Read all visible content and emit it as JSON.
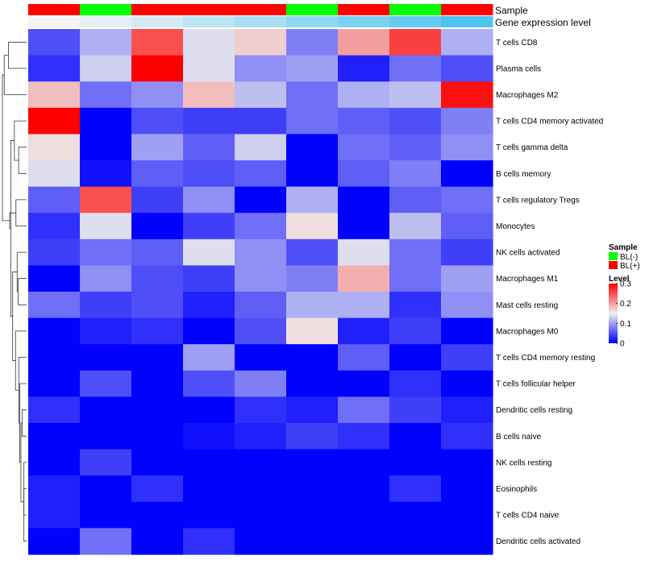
{
  "chart_data": {
    "type": "heatmap",
    "annotations": [
      {
        "name": "Sample",
        "values": [
          "BL(+)",
          "BL(-)",
          "BL(+)",
          "BL(+)",
          "BL(+)",
          "BL(-)",
          "BL(+)",
          "BL(-)",
          "BL(+)"
        ]
      },
      {
        "name": "Gene expression level",
        "values": [
          0.02,
          0.05,
          0.08,
          0.12,
          0.16,
          0.2,
          0.24,
          0.28,
          0.32
        ]
      }
    ],
    "rows": [
      "T cells CD8",
      "Plasma cells",
      "Macrophages M2",
      "T cells CD4 memory activated",
      "T cells gamma delta",
      "B cells memory",
      "T cells regulatory  Tregs",
      "Monocytes",
      "NK cells activated",
      "Macrophages M1",
      "Mast cells resting",
      "Macrophages M0",
      "T cells CD4 memory resting",
      "T cells follicular helper",
      "Dendritic cells resting",
      "B cells naive",
      "NK cells resting",
      "Eosinophils",
      "T cells CD4 naive",
      "Dendritic cells activated"
    ],
    "values": [
      [
        0.05,
        0.11,
        0.25,
        0.14,
        0.17,
        0.08,
        0.2,
        0.26,
        0.11
      ],
      [
        0.03,
        0.13,
        0.3,
        0.14,
        0.09,
        0.1,
        0.02,
        0.07,
        0.05
      ],
      [
        0.18,
        0.07,
        0.09,
        0.18,
        0.12,
        0.07,
        0.11,
        0.12,
        0.29
      ],
      [
        0.3,
        0.0,
        0.05,
        0.04,
        0.04,
        0.07,
        0.06,
        0.05,
        0.08
      ],
      [
        0.16,
        0.0,
        0.1,
        0.06,
        0.13,
        0.0,
        0.07,
        0.06,
        0.09
      ],
      [
        0.14,
        0.01,
        0.06,
        0.05,
        0.06,
        0.0,
        0.06,
        0.08,
        0.0
      ],
      [
        0.06,
        0.25,
        0.04,
        0.09,
        0.0,
        0.11,
        0.0,
        0.06,
        0.07
      ],
      [
        0.03,
        0.14,
        0.0,
        0.04,
        0.07,
        0.16,
        0.0,
        0.12,
        0.06
      ],
      [
        0.04,
        0.07,
        0.06,
        0.14,
        0.09,
        0.05,
        0.14,
        0.07,
        0.04
      ],
      [
        0.0,
        0.09,
        0.05,
        0.04,
        0.09,
        0.08,
        0.19,
        0.07,
        0.1
      ],
      [
        0.07,
        0.04,
        0.05,
        0.02,
        0.06,
        0.11,
        0.11,
        0.03,
        0.09
      ],
      [
        0.0,
        0.02,
        0.03,
        0.0,
        0.05,
        0.16,
        0.02,
        0.04,
        0.0
      ],
      [
        0.0,
        0.0,
        0.0,
        0.1,
        0.0,
        0.0,
        0.06,
        0.0,
        0.04
      ],
      [
        0.0,
        0.05,
        0.0,
        0.05,
        0.08,
        0.0,
        0.0,
        0.03,
        0.0
      ],
      [
        0.03,
        0.0,
        0.0,
        0.0,
        0.03,
        0.02,
        0.07,
        0.04,
        0.02
      ],
      [
        0.0,
        0.0,
        0.0,
        0.01,
        0.02,
        0.04,
        0.03,
        0.0,
        0.03
      ],
      [
        0.0,
        0.04,
        0.0,
        0.0,
        0.0,
        0.0,
        0.0,
        0.0,
        0.0
      ],
      [
        0.02,
        0.0,
        0.03,
        0.0,
        0.0,
        0.0,
        0.0,
        0.03,
        0.0
      ],
      [
        0.02,
        0.0,
        0.0,
        0.0,
        0.0,
        0.0,
        0.0,
        0.0,
        0.0
      ],
      [
        0.0,
        0.07,
        0.0,
        0.03,
        0.0,
        0.0,
        0.0,
        0.0,
        0.0
      ]
    ],
    "color_scale": {
      "low": "#0000ff",
      "mid": "#eeeeee",
      "high": "#ff0000",
      "min": 0,
      "mid_value": 0.15,
      "max": 0.3
    },
    "legend": {
      "position": "right",
      "sample": {
        "title": "Sample",
        "items": [
          {
            "label": "BL(-)",
            "color": "#00ff00"
          },
          {
            "label": "BL(+)",
            "color": "#ff0000"
          }
        ]
      },
      "level": {
        "title": "Level",
        "ticks": [
          {
            "label": "0.3",
            "value": 0.3
          },
          {
            "label": "0.2",
            "value": 0.2
          },
          {
            "label": "0.1",
            "value": 0.1
          },
          {
            "label": "0",
            "value": 0
          }
        ]
      }
    },
    "gene_expression_colors": {
      "low": "#f4f4f4",
      "high": "#4fc4ee"
    },
    "dendrogram": "rows"
  }
}
